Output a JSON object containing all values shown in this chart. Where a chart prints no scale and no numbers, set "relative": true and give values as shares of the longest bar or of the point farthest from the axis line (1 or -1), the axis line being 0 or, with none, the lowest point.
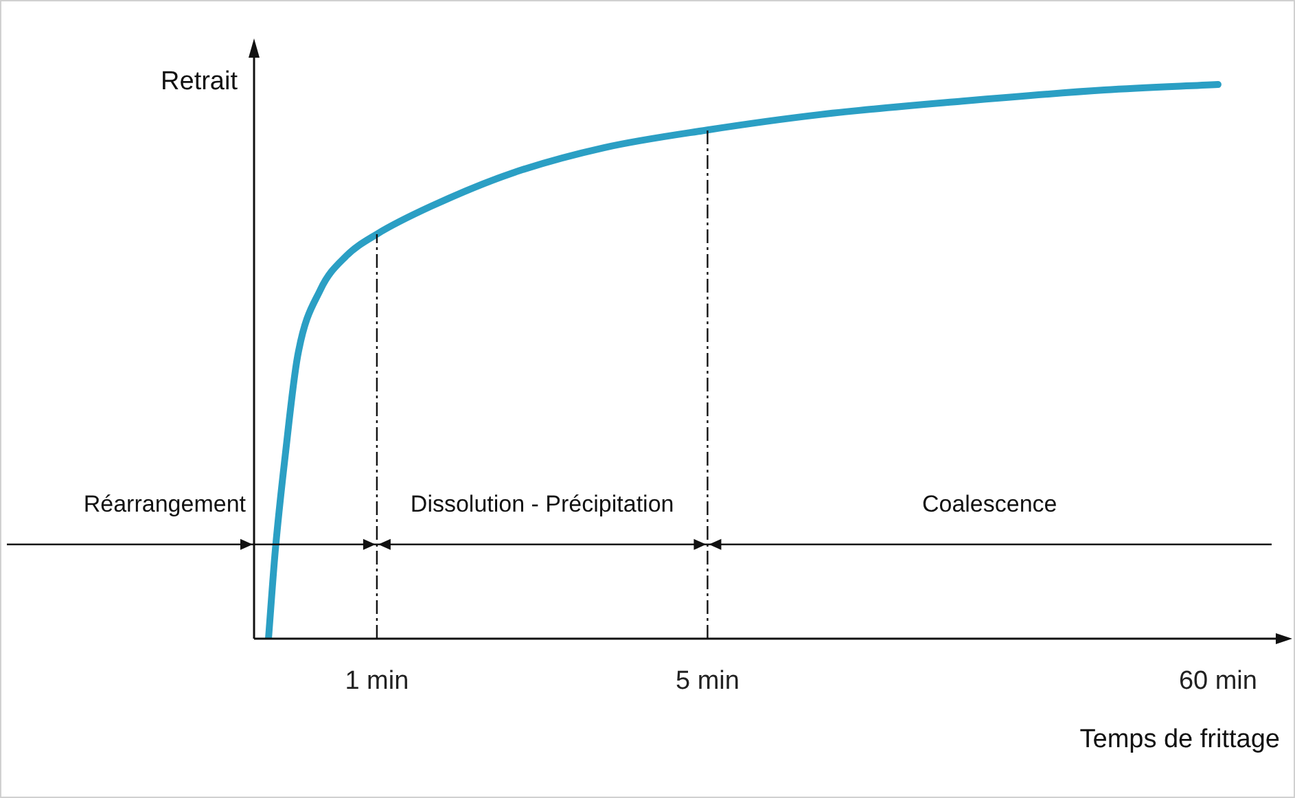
{
  "chart_data": {
    "type": "line",
    "xlabel": "Temps de frittage",
    "ylabel": "Retrait",
    "relative": true,
    "log": "x",
    "xlim": [
      0.55,
      80
    ],
    "xticks": [
      {
        "value": 1,
        "label": "1 min"
      },
      {
        "value": 5,
        "label": "5 min"
      },
      {
        "value": 60,
        "label": "60 min"
      }
    ],
    "x": [
      0.59,
      0.61,
      0.64,
      0.68,
      0.76,
      0.86,
      1,
      1.3,
      1.93,
      3.02,
      5,
      8.7,
      17.3,
      34.5,
      60
    ],
    "series": [
      {
        "color": "#2b9fc4",
        "values": [
          0,
          0.16,
          0.33,
          0.51,
          0.63,
          0.69,
          0.73,
          0.78,
          0.84,
          0.886,
          0.918,
          0.946,
          0.97,
          0.99,
          1
        ]
      }
    ],
    "ref_lines": [
      {
        "axis": "x",
        "value": 1,
        "label": null,
        "line_style": "dashed"
      },
      {
        "axis": "x",
        "value": 5,
        "label": null,
        "line_style": "dashed"
      },
      {
        "axis": "y",
        "value": 0.17,
        "label": null
      }
    ],
    "annotations": [
      "Réarrangement",
      "Dissolution - Précipitation",
      "Coalescence"
    ]
  }
}
